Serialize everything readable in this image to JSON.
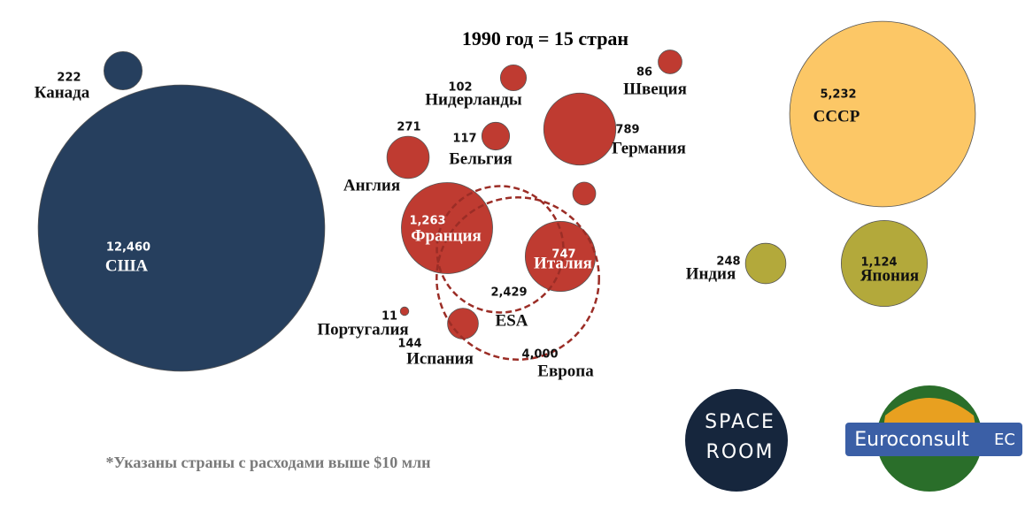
{
  "chart_data": {
    "type": "bubble",
    "title": "1990 год = 15 стран",
    "note": "*Указаны страны с расходами выше $10 млн",
    "categories": [
      "США",
      "Канада",
      "Нидерланды",
      "Швеция",
      "Германия",
      "Бельгия",
      "Англия",
      "Франция",
      null,
      "Италия",
      "Португалия",
      "Испания",
      "ESA",
      "Европа",
      "СССР",
      "Индия",
      "Япония"
    ],
    "values": [
      12460,
      222,
      102,
      86,
      789,
      117,
      271,
      1263,
      80,
      747,
      11,
      144,
      2429,
      4000,
      5232,
      248,
      1124
    ],
    "value_labels": [
      "12,460",
      "222",
      "102",
      "86",
      "789",
      "117",
      "271",
      "1,263",
      null,
      "747",
      "11",
      "144",
      "2,429",
      "4,000",
      "5,232",
      "248",
      "1,124"
    ],
    "colors": [
      "#263f5e",
      "#263f5e",
      "#bf3b31",
      "#bf3b31",
      "#bf3b31",
      "#bf3b31",
      "#bf3b31",
      "#bf3b31",
      "#bf3b31",
      "#bf3b31",
      "#bf3b31",
      "#bf3b31",
      "#9b2d26",
      "#9b2d26",
      "#fcc766",
      "#b3a93b",
      "#b3a93b"
    ],
    "dashed": [
      false,
      false,
      false,
      false,
      false,
      false,
      false,
      false,
      false,
      false,
      false,
      false,
      true,
      true,
      false,
      false,
      false
    ]
  },
  "logos": {
    "space_room": [
      "SPACE",
      "ROOM"
    ],
    "euroconsult": "Euroconsult",
    "ec": "EC"
  }
}
